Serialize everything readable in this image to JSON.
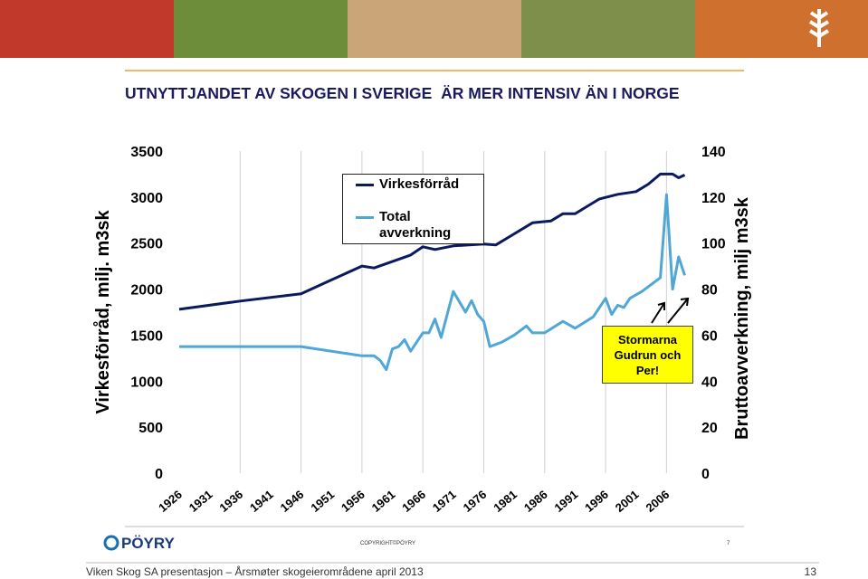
{
  "slide": {
    "title": "UTNYTTJANDET AV SKOGEN I SVERIGE  ÄR MER INTENSIV ÄN I NORGE",
    "logo": "PÖYRY",
    "copyright": "COPYRIGHT©PÖYRY",
    "inner_page": "7",
    "footer": "Viken Skog SA presentasjon – Årsmøter skogeierområdene april 2013",
    "page": "13"
  },
  "chart_data": {
    "type": "line",
    "y_label": "Virkesförråd, milj. m3sk",
    "y2_label": "Bruttoavverkning, milj m3sk",
    "annotation": "Stormarna Gudrun och Per!",
    "xlim": [
      1926,
      2011
    ],
    "xticks": [
      1926,
      1931,
      1936,
      1941,
      1946,
      1951,
      1956,
      1961,
      1966,
      1971,
      1976,
      1981,
      1986,
      1991,
      1996,
      2001,
      2006
    ],
    "ylim": [
      0,
      3500
    ],
    "yticks": [
      0,
      500,
      1000,
      1500,
      2000,
      2500,
      3000,
      3500
    ],
    "y2lim": [
      0,
      140
    ],
    "y2ticks": [
      0,
      20,
      40,
      60,
      80,
      100,
      120,
      140
    ],
    "grid": true,
    "series": [
      {
        "name": "Virkesförråd",
        "color": "#0b1a5e",
        "x": [
          1926,
          1936,
          1946,
          1951,
          1956,
          1958,
          1961,
          1964,
          1966,
          1968,
          1971,
          1976,
          1978,
          1981,
          1984,
          1987,
          1989,
          1991,
          1993,
          1995,
          1998,
          2001,
          2003,
          2005,
          2007,
          2008,
          2009
        ],
        "values": [
          1780,
          1870,
          1950,
          2100,
          2250,
          2230,
          2300,
          2370,
          2460,
          2430,
          2470,
          2490,
          2480,
          2600,
          2720,
          2740,
          2820,
          2820,
          2900,
          2980,
          3030,
          3060,
          3140,
          3250,
          3250,
          3210,
          3240
        ]
      },
      {
        "name": "Total avverkning",
        "color": "#4fa7d8",
        "axis": "y2",
        "x": [
          1926,
          1946,
          1956,
          1958,
          1959,
          1960,
          1961,
          1962,
          1963,
          1964,
          1966,
          1967,
          1968,
          1969,
          1971,
          1973,
          1974,
          1975,
          1976,
          1977,
          1979,
          1981,
          1983,
          1984,
          1986,
          1989,
          1991,
          1994,
          1996,
          1997,
          1998,
          1999,
          2000,
          2002,
          2004,
          2005,
          2006,
          2007,
          2008,
          2009
        ],
        "values": [
          55,
          55,
          51,
          51,
          49,
          45,
          54,
          55,
          58,
          53,
          61,
          61,
          67,
          59,
          79,
          70,
          75,
          69,
          66,
          55,
          57,
          60,
          64,
          61,
          61,
          66,
          63,
          68,
          76,
          69,
          73,
          72,
          76,
          79,
          83,
          85,
          121,
          80,
          94,
          86
        ]
      }
    ]
  }
}
